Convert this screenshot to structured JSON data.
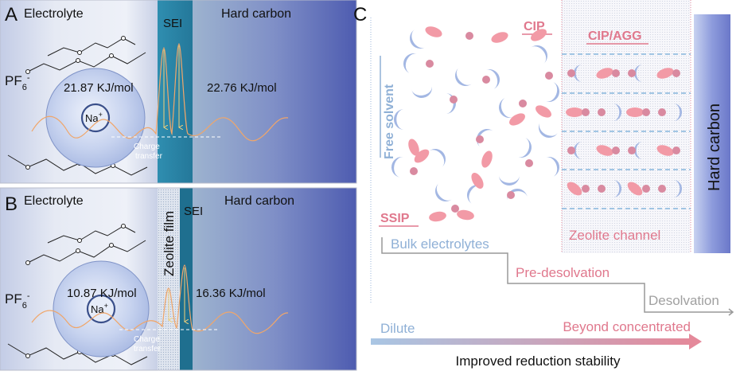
{
  "panelA": {
    "letter": "A",
    "electrolyte": "Electrolyte",
    "sei": "SEI",
    "hard_carbon": "Hard carbon",
    "energy_left": "21.87 KJ/mol",
    "energy_right": "22.76 KJ/mol",
    "anion": "PF",
    "anion_sub": "6",
    "anion_sup": "-",
    "ion": "Na",
    "ion_sup": "+",
    "charge_line1": "Charge",
    "charge_line2": "transfer"
  },
  "panelB": {
    "letter": "B",
    "electrolyte": "Electrolyte",
    "zeolite_film": "Zeolite film",
    "sei": "SEI",
    "hard_carbon": "Hard carbon",
    "energy_left": "10.87 KJ/mol",
    "energy_right": "16.36 KJ/mol",
    "anion": "PF",
    "anion_sub": "6",
    "anion_sup": "-",
    "ion": "Na",
    "ion_sup": "+",
    "charge_line1": "Charge",
    "charge_line2": "transfer"
  },
  "panelC": {
    "letter": "C",
    "free_solvent": "Free solvent",
    "cip": "CIP",
    "cip_agg": "CIP/AGG",
    "ssip": "SSIP",
    "hard_carbon": "Hard carbon",
    "bulk_electrolytes": "Bulk electrolytes",
    "zeolite_channel": "Zeolite channel",
    "pre_desolvation": "Pre-desolvation",
    "desolvation": "Desolvation",
    "dilute": "Dilute",
    "beyond_concentrated": "Beyond concentrated",
    "improved": "Improved reduction stability"
  },
  "colors": {
    "electrolyte_light": "#eef1f8",
    "electrolyte_dark": "#a7b4d8",
    "sei_teal": "#2e87a8",
    "hard_carbon": "#5566b3",
    "energy_curve": "#f0a66a",
    "sphere_blue": "#a9bde6",
    "solvent_blue": "#a3b7e3",
    "ion_pink": "#d98aa0",
    "anion_pink": "#f29aa6",
    "label_blue": "#8fb0d6",
    "label_pink": "#e0788d",
    "gray": "#8c8c8c",
    "dash_blue": "#86b6dc"
  }
}
